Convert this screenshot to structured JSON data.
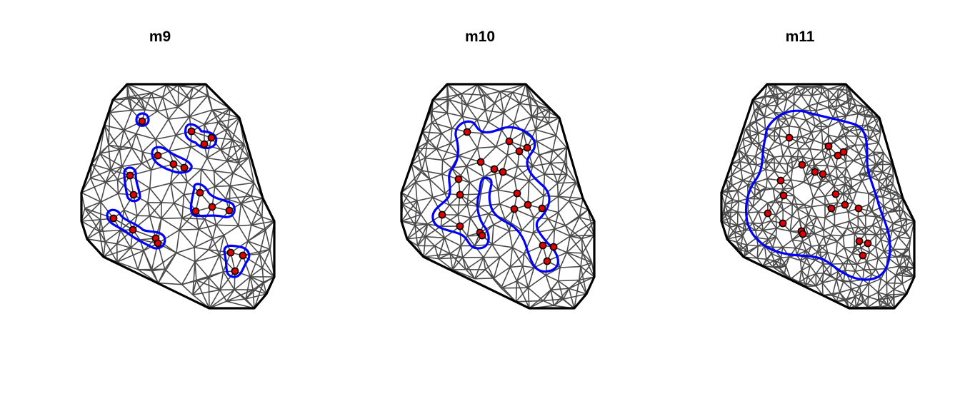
{
  "panels": [
    {
      "title": "m9",
      "mesh": "fine",
      "boundary": "tight"
    },
    {
      "title": "m10",
      "mesh": "fine",
      "boundary": "medium"
    },
    {
      "title": "m11",
      "mesh": "dense",
      "boundary": "wide"
    }
  ],
  "colors": {
    "mesh_edges": "#4a4a4a",
    "outer_boundary": "#000000",
    "inner_boundary": "#0000ff",
    "points": "#e00000",
    "point_outline": "#000000"
  }
}
